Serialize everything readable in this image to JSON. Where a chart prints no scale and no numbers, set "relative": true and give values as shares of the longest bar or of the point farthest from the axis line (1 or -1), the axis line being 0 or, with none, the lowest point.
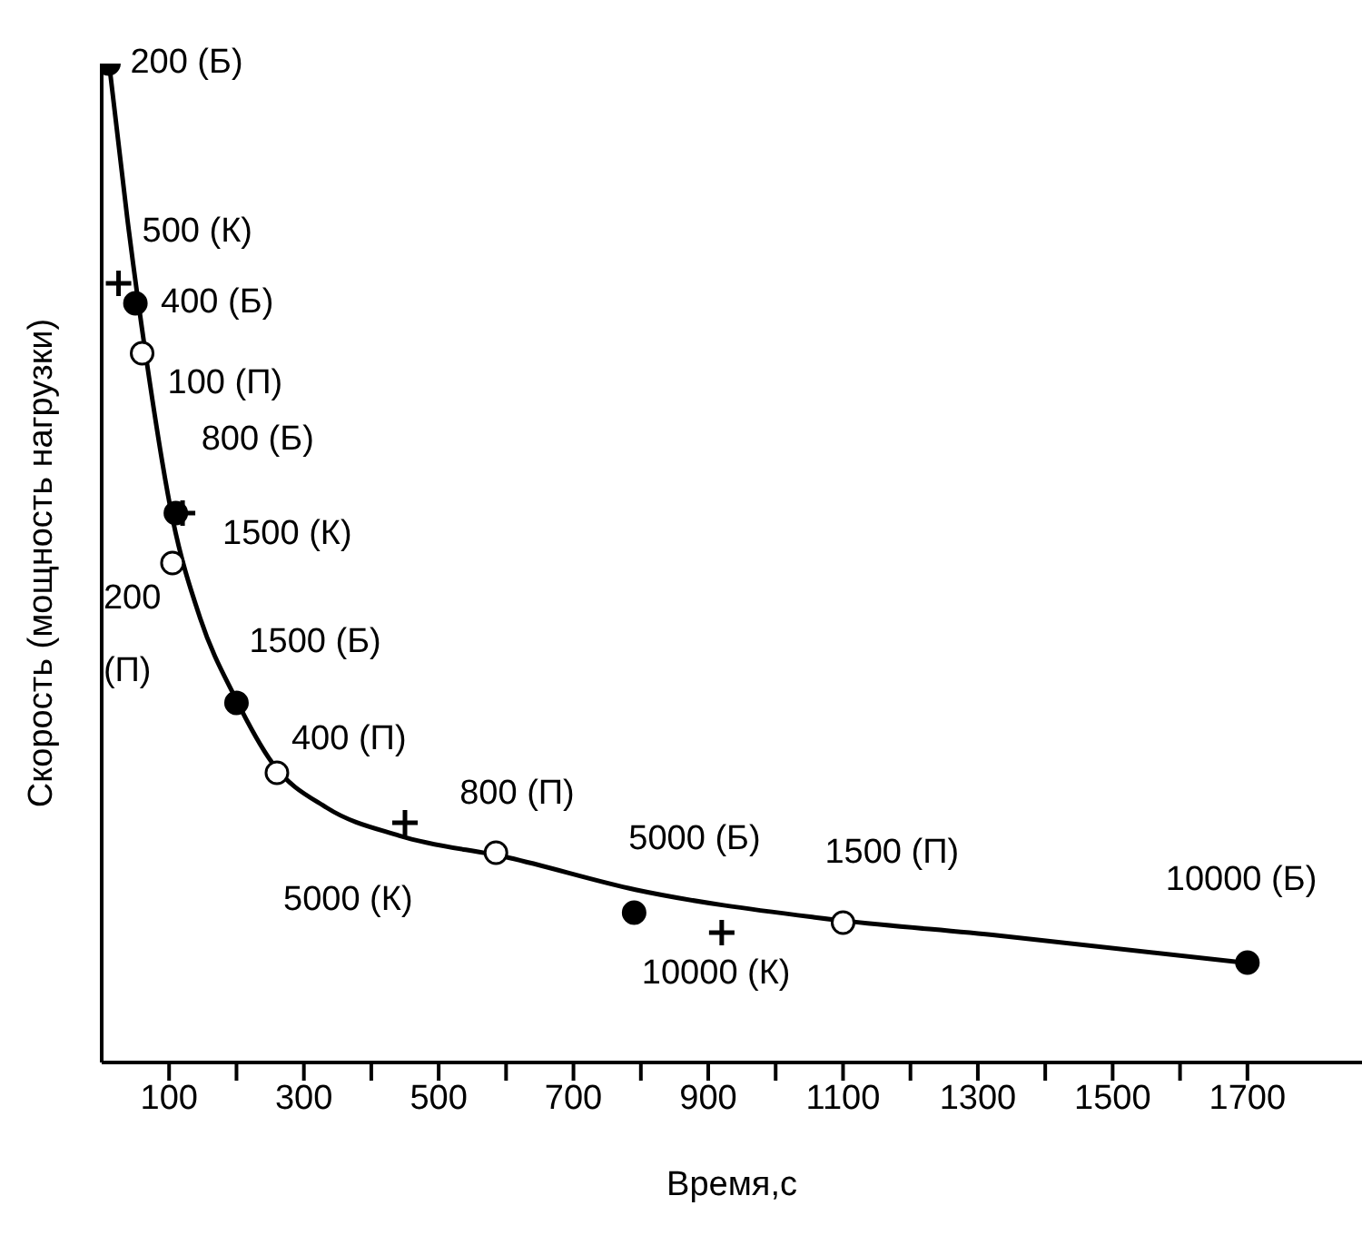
{
  "chart_data": {
    "type": "scatter",
    "relative": true,
    "xlabel": "Время,с",
    "ylabel": "Скорость (мощность нагрузки)",
    "xlim": [
      0,
      1870
    ],
    "xticks": [
      100,
      {
        "value": 200,
        "label": null
      },
      300,
      {
        "value": 400,
        "label": null
      },
      500,
      {
        "value": 600,
        "label": null
      },
      700,
      {
        "value": 800,
        "label": null
      },
      900,
      {
        "value": 1000,
        "label": null
      },
      1100,
      {
        "value": 1200,
        "label": null
      },
      1300,
      {
        "value": 1400,
        "label": null
      },
      1500,
      {
        "value": 1600,
        "label": null
      },
      1700
    ],
    "grid": false,
    "legend": false,
    "series": [
      {
        "marker": "circle",
        "color": "#000000",
        "x": [
          10,
          50,
          110,
          200,
          790,
          1700
        ],
        "values": [
          1.0,
          0.76,
          0.55,
          0.36,
          0.15,
          0.1
        ]
      },
      {
        "marker": "circle",
        "color": "#ffffff",
        "x": [
          60,
          105,
          260,
          585,
          1100
        ],
        "values": [
          0.71,
          0.5,
          0.29,
          0.21,
          0.14
        ]
      },
      {
        "marker": "cross",
        "color": "#000000",
        "x": [
          25,
          120,
          450,
          920
        ],
        "values": [
          0.78,
          0.55,
          0.24,
          0.13
        ]
      },
      {
        "type": "line",
        "marker": "none",
        "color": "#000000",
        "x": [
          11,
          38,
          65,
          105,
          146,
          199,
          253,
          334,
          442,
          604,
          792,
          1061,
          1331,
          1695
        ],
        "values": [
          1.0,
          0.845,
          0.71,
          0.545,
          0.445,
          0.364,
          0.3,
          0.255,
          0.227,
          0.205,
          0.173,
          0.145,
          0.127,
          0.1
        ]
      }
    ],
    "annotations": [
      {
        "text": "200 (Б)",
        "x": 10,
        "y": 1.0
      },
      {
        "text": "500 (К)",
        "x": 25,
        "y": 0.78
      },
      {
        "text": "400 (Б)",
        "x": 50,
        "y": 0.76
      },
      {
        "text": "100 (П)",
        "x": 60,
        "y": 0.71
      },
      {
        "text": "800 (Б)",
        "x": 110,
        "y": 0.55
      },
      {
        "text": "1500 (К)",
        "x": 120,
        "y": 0.55
      },
      {
        "text": "200 (П)",
        "x": 105,
        "y": 0.5
      },
      {
        "text": "1500 (Б)",
        "x": 200,
        "y": 0.36
      },
      {
        "text": "400 (П)",
        "x": 260,
        "y": 0.29
      },
      {
        "text": "5000 (К)",
        "x": 450,
        "y": 0.24
      },
      {
        "text": "800 (П)",
        "x": 585,
        "y": 0.21
      },
      {
        "text": "5000 (Б)",
        "x": 790,
        "y": 0.15
      },
      {
        "text": "10000 (К)",
        "x": 920,
        "y": 0.13
      },
      {
        "text": "1500 (П)",
        "x": 1100,
        "y": 0.14
      },
      {
        "text": "10000 (Б)",
        "x": 1700,
        "y": 0.1
      }
    ]
  }
}
